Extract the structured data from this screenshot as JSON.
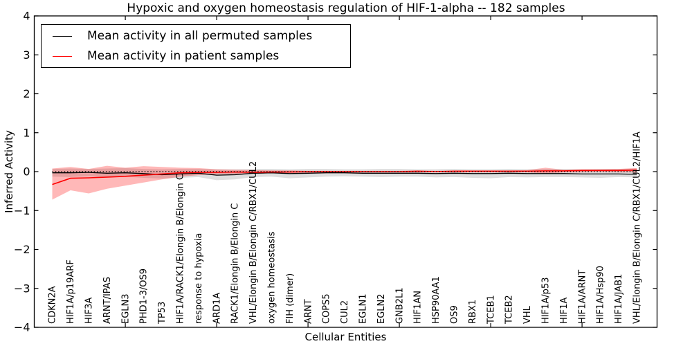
{
  "chart_data": {
    "type": "line",
    "title": "Hypoxic and oxygen homeostasis regulation of HIF-1-alpha -- 182 samples",
    "xlabel": "Cellular Entities",
    "ylabel": "Inferred Activity",
    "ylim": [
      -4,
      4
    ],
    "yticks": [
      4,
      3,
      2,
      1,
      0,
      -1,
      -2,
      -3,
      -4
    ],
    "grid": false,
    "legend_position": "upper-left",
    "zero_reference_line": "dotted",
    "axis_tick_category_indices": [
      4,
      9,
      14,
      19,
      24,
      29
    ],
    "categories": [
      "CDKN2A",
      "HIF1A/p19ARF",
      "HIF3A",
      "ARNT/IPAS",
      "EGLN3",
      "PHD1-3/OS9",
      "TP53",
      "HIF1A/RACK1/Elongin B/Elongin C",
      "response to hypoxia",
      "ARD1A",
      "RACK1/Elongin B/Elongin C",
      "VHL/Elongin B/Elongin C/RBX1/CUL2",
      "oxygen homeostasis",
      "FIH (dimer)",
      "ARNT",
      "COPS5",
      "CUL2",
      "EGLN1",
      "EGLN2",
      "GNB2L1",
      "HIF1AN",
      "HSP90AA1",
      "OS9",
      "RBX1",
      "TCEB1",
      "TCEB2",
      "VHL",
      "HIF1A/p53",
      "HIF1A",
      "HIF1A/ARNT",
      "HIF1A/Hsp90",
      "HIF1A/JAB1",
      "VHL/Elongin B/Elongin C/RBX1/CUL2/HIF1A"
    ],
    "series": [
      {
        "name": "Mean activity in all permuted samples",
        "color": "#000000",
        "band_color": "rgba(0,0,0,0.13)",
        "values": [
          -0.03,
          -0.03,
          -0.02,
          -0.04,
          -0.03,
          -0.05,
          -0.08,
          -0.06,
          -0.04,
          -0.09,
          -0.08,
          -0.04,
          -0.03,
          -0.05,
          -0.04,
          -0.03,
          -0.03,
          -0.04,
          -0.04,
          -0.04,
          -0.04,
          -0.05,
          -0.04,
          -0.05,
          -0.05,
          -0.04,
          -0.05,
          -0.05,
          -0.05,
          -0.06,
          -0.06,
          -0.06,
          -0.07
        ],
        "band_upper": [
          0.07,
          0.08,
          0.07,
          0.08,
          0.09,
          0.07,
          0.06,
          0.07,
          0.07,
          0.06,
          0.06,
          0.07,
          0.07,
          0.06,
          0.07,
          0.07,
          0.06,
          0.06,
          0.07,
          0.07,
          0.06,
          0.06,
          0.07,
          0.06,
          0.06,
          0.07,
          0.06,
          0.07,
          0.07,
          0.06,
          0.07,
          0.07,
          0.08
        ],
        "band_lower": [
          -0.13,
          -0.14,
          -0.12,
          -0.15,
          -0.13,
          -0.16,
          -0.18,
          -0.16,
          -0.14,
          -0.22,
          -0.2,
          -0.14,
          -0.13,
          -0.17,
          -0.15,
          -0.13,
          -0.12,
          -0.13,
          -0.14,
          -0.13,
          -0.13,
          -0.15,
          -0.14,
          -0.16,
          -0.17,
          -0.14,
          -0.15,
          -0.14,
          -0.14,
          -0.15,
          -0.16,
          -0.14,
          -0.15
        ]
      },
      {
        "name": "Mean activity in patient samples",
        "color": "#ff0000",
        "band_color": "rgba(255,0,0,0.28)",
        "values": [
          -0.33,
          -0.17,
          -0.16,
          -0.14,
          -0.12,
          -0.09,
          -0.06,
          -0.03,
          -0.02,
          -0.02,
          -0.01,
          -0.02,
          -0.01,
          -0.01,
          0,
          0,
          0,
          0,
          0,
          0,
          0.01,
          0,
          0.01,
          0.01,
          0.01,
          0.01,
          0.01,
          0.02,
          0.02,
          0.03,
          0.03,
          0.03,
          0.04
        ],
        "band_upper": [
          0.08,
          0.12,
          0.07,
          0.15,
          0.1,
          0.14,
          0.12,
          0.1,
          0.09,
          0.06,
          0.05,
          0.04,
          0.03,
          0.03,
          0.02,
          0.02,
          0.02,
          0.02,
          0.02,
          0.02,
          0.03,
          0.02,
          0.03,
          0.03,
          0.03,
          0.03,
          0.04,
          0.1,
          0.05,
          0.06,
          0.06,
          0.07,
          0.09
        ],
        "band_lower": [
          -0.72,
          -0.48,
          -0.56,
          -0.44,
          -0.36,
          -0.28,
          -0.2,
          -0.13,
          -0.09,
          -0.07,
          -0.06,
          -0.06,
          -0.04,
          -0.04,
          -0.03,
          -0.02,
          -0.02,
          -0.02,
          -0.02,
          -0.02,
          -0.02,
          -0.02,
          -0.02,
          -0.02,
          -0.02,
          -0.02,
          -0.02,
          -0.05,
          -0.02,
          -0.02,
          -0.01,
          -0.02,
          -0.02
        ]
      }
    ]
  }
}
